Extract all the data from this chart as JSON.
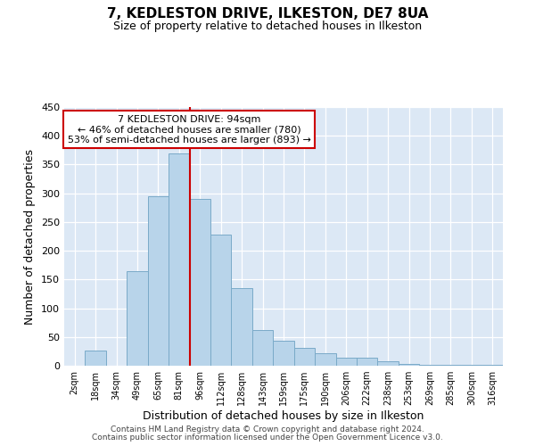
{
  "title": "7, KEDLESTON DRIVE, ILKESTON, DE7 8UA",
  "subtitle": "Size of property relative to detached houses in Ilkeston",
  "xlabel": "Distribution of detached houses by size in Ilkeston",
  "ylabel": "Number of detached properties",
  "bar_labels": [
    "2sqm",
    "18sqm",
    "34sqm",
    "49sqm",
    "65sqm",
    "81sqm",
    "96sqm",
    "112sqm",
    "128sqm",
    "143sqm",
    "159sqm",
    "175sqm",
    "190sqm",
    "206sqm",
    "222sqm",
    "238sqm",
    "253sqm",
    "269sqm",
    "285sqm",
    "300sqm",
    "316sqm"
  ],
  "bar_values": [
    0,
    27,
    0,
    165,
    295,
    370,
    290,
    228,
    135,
    62,
    44,
    31,
    22,
    14,
    14,
    7,
    3,
    2,
    1,
    1,
    1
  ],
  "bar_color": "#b8d4ea",
  "bar_edge_color": "#7aaac8",
  "vline_x": 5.5,
  "vline_color": "#cc0000",
  "annotation_title": "7 KEDLESTON DRIVE: 94sqm",
  "annotation_line1": "← 46% of detached houses are smaller (780)",
  "annotation_line2": "53% of semi-detached houses are larger (893) →",
  "annotation_box_color": "#ffffff",
  "annotation_box_edge": "#cc0000",
  "ylim": [
    0,
    450
  ],
  "yticks": [
    0,
    50,
    100,
    150,
    200,
    250,
    300,
    350,
    400,
    450
  ],
  "footer_line1": "Contains HM Land Registry data © Crown copyright and database right 2024.",
  "footer_line2": "Contains public sector information licensed under the Open Government Licence v3.0.",
  "bg_color": "#dce8f5",
  "fig_bg_color": "#ffffff",
  "title_fontsize": 11,
  "subtitle_fontsize": 9
}
